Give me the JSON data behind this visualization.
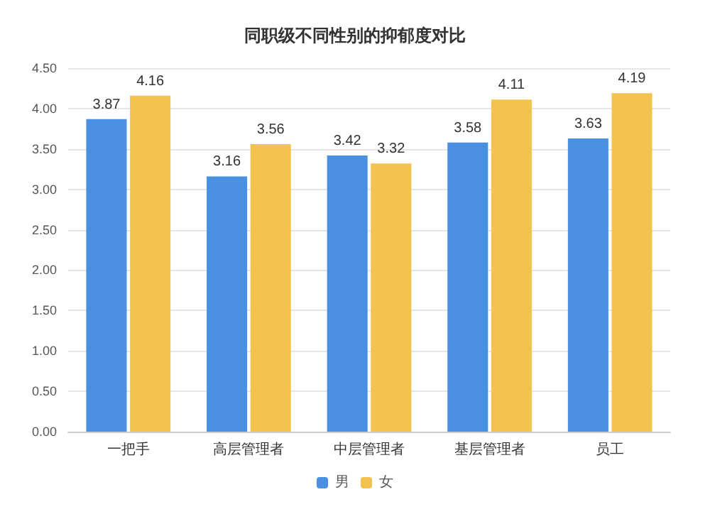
{
  "chart_data": {
    "type": "bar",
    "title": "同职级不同性别的抑郁度对比",
    "categories": [
      "一把手",
      "高层管理者",
      "中层管理者",
      "基层管理者",
      "员工"
    ],
    "series": [
      {
        "name": "男",
        "color": "#4a90e2",
        "values": [
          3.87,
          3.16,
          3.42,
          3.58,
          3.63
        ]
      },
      {
        "name": "女",
        "color": "#f2c34e",
        "values": [
          4.16,
          3.56,
          3.32,
          4.11,
          4.19
        ]
      }
    ],
    "ylim": [
      0,
      4.5
    ],
    "yticks": [
      {
        "value": 0,
        "label": "0.00"
      },
      {
        "value": 0.5,
        "label": "0.50"
      },
      {
        "value": 1,
        "label": "1.00"
      },
      {
        "value": 1.5,
        "label": "1.50"
      },
      {
        "value": 2,
        "label": "2.00"
      },
      {
        "value": 2.5,
        "label": "2.50"
      },
      {
        "value": 3,
        "label": "3.00"
      },
      {
        "value": 3.5,
        "label": "3.50"
      },
      {
        "value": 4,
        "label": "4.00"
      },
      {
        "value": 4.5,
        "label": "4.50"
      }
    ],
    "grid": "y",
    "legend": "bottom",
    "data_labels": true
  }
}
